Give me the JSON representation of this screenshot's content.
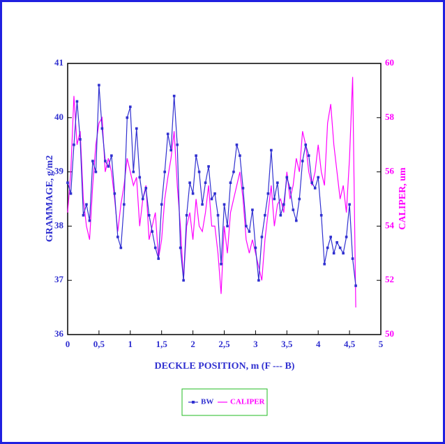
{
  "chart_data": {
    "type": "line",
    "x_label": "DECKLE POSITION, m (F --- B)",
    "y_label": "GRAMMAGE, g/m2",
    "y2_label": "CALIPER, um",
    "x": [
      0,
      0.05,
      0.1,
      0.15,
      0.2,
      0.25,
      0.3,
      0.35,
      0.4,
      0.45,
      0.5,
      0.55,
      0.6,
      0.65,
      0.7,
      0.75,
      0.8,
      0.85,
      0.9,
      0.95,
      1.0,
      1.05,
      1.1,
      1.15,
      1.2,
      1.25,
      1.3,
      1.35,
      1.4,
      1.45,
      1.5,
      1.55,
      1.6,
      1.65,
      1.7,
      1.75,
      1.8,
      1.85,
      1.9,
      1.95,
      2.0,
      2.05,
      2.1,
      2.15,
      2.2,
      2.25,
      2.3,
      2.35,
      2.4,
      2.45,
      2.5,
      2.55,
      2.6,
      2.65,
      2.7,
      2.75,
      2.8,
      2.85,
      2.9,
      2.95,
      3.0,
      3.05,
      3.1,
      3.15,
      3.2,
      3.25,
      3.3,
      3.35,
      3.4,
      3.45,
      3.5,
      3.55,
      3.6,
      3.65,
      3.7,
      3.75,
      3.8,
      3.85,
      3.9,
      3.95,
      4.0,
      4.05,
      4.1,
      4.15,
      4.2,
      4.25,
      4.3,
      4.35,
      4.4,
      4.45,
      4.5,
      4.55,
      4.6
    ],
    "series": [
      {
        "name": "BW",
        "color": "#3030d0",
        "markers": true,
        "values": [
          38.8,
          38.6,
          39.5,
          40.3,
          39.6,
          38.2,
          38.4,
          38.1,
          39.2,
          39.0,
          40.6,
          39.8,
          39.2,
          39.1,
          39.3,
          38.6,
          37.8,
          37.6,
          38.4,
          40.0,
          40.2,
          39.0,
          39.8,
          38.9,
          38.5,
          38.7,
          38.2,
          37.9,
          37.6,
          37.4,
          38.4,
          39.0,
          39.7,
          39.4,
          40.4,
          39.5,
          37.6,
          37.0,
          38.2,
          38.8,
          38.6,
          39.3,
          39.0,
          38.4,
          38.8,
          39.1,
          38.5,
          38.6,
          38.2,
          37.3,
          38.4,
          38.0,
          38.8,
          39.0,
          39.5,
          39.3,
          38.7,
          38.0,
          37.9,
          38.3,
          37.6,
          37.0,
          37.8,
          38.2,
          38.6,
          39.4,
          38.5,
          38.8,
          38.2,
          38.4,
          38.9,
          38.7,
          38.3,
          38.1,
          38.5,
          39.2,
          39.5,
          39.3,
          38.8,
          38.7,
          38.9,
          38.2,
          37.3,
          37.6,
          37.8,
          37.5,
          37.7,
          37.6,
          37.5,
          37.8,
          38.4,
          37.4,
          36.9
        ]
      },
      {
        "name": "CALIPER",
        "color": "#ff00ff",
        "axis": "y2",
        "markers": false,
        "values": [
          54.5,
          56,
          58.8,
          57,
          57.5,
          55,
          54,
          53.5,
          55.5,
          57,
          57.8,
          58,
          56,
          56.5,
          56,
          55,
          53.8,
          54.8,
          55.5,
          56.5,
          56,
          55.5,
          55.8,
          54,
          55,
          55.5,
          53.5,
          54,
          54.5,
          52.8,
          53.5,
          55,
          55.8,
          56.5,
          57.5,
          55.5,
          54,
          52,
          54,
          54.5,
          53.5,
          55,
          54,
          53.8,
          54.5,
          55.5,
          54,
          54,
          53,
          51.5,
          54,
          53,
          54.5,
          55,
          55.5,
          56,
          55,
          53.5,
          53,
          53.5,
          53,
          52.5,
          52,
          53.5,
          54.5,
          55.5,
          54,
          54.8,
          55,
          54.5,
          56,
          55,
          55.5,
          56.5,
          56,
          57.5,
          57,
          56,
          55.5,
          56,
          57,
          56,
          55.5,
          57.8,
          58.5,
          57,
          56,
          55,
          55.5,
          54.5,
          56.5,
          59.5,
          51
        ]
      }
    ],
    "xlim": [
      0,
      5
    ],
    "xticks": [
      0,
      {
        "value": 0.5,
        "label": "0,5"
      },
      1,
      {
        "value": 1.5,
        "label": "1,5"
      },
      2,
      {
        "value": 2.5,
        "label": "2,5"
      },
      3,
      {
        "value": 3.5,
        "label": "3,5"
      },
      4,
      {
        "value": 4.5,
        "label": "4,5"
      },
      5
    ],
    "ylim": [
      36,
      41
    ],
    "yticks": [
      36,
      37,
      38,
      39,
      40,
      41
    ],
    "y2lim": [
      50,
      60
    ],
    "y2ticks": [
      50,
      52,
      54,
      56,
      58,
      60
    ],
    "y_color": "#3030d0",
    "y2_color": "#ff00ff",
    "legend": "bottom"
  }
}
